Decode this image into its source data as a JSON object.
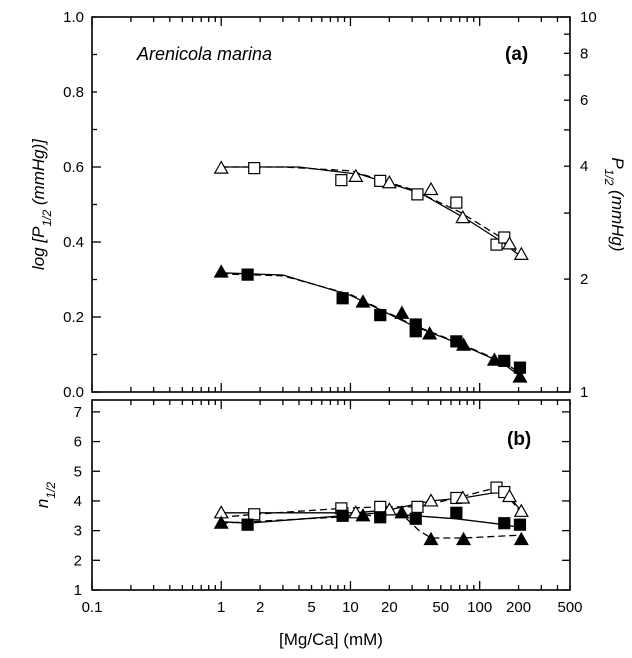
{
  "chart_data": [
    {
      "panel": "a",
      "type": "scatter",
      "panel_label": "(a)",
      "annotation": "Arenicola marina",
      "xlabel": "[Mg/Ca] (mM)",
      "xscale": "log",
      "xlim": [
        0.1,
        500
      ],
      "x_tick_labels": [
        "0.1",
        "1",
        "2",
        "5",
        "10",
        "20",
        "50",
        "100",
        "200",
        "500"
      ],
      "ylabel_left": "log [P1/2 (mmHg)]",
      "ylim": [
        0.0,
        1.0
      ],
      "y_tick_labels": [
        "0.0",
        "0.2",
        "0.4",
        "0.6",
        "0.8",
        "1.0"
      ],
      "ylabel_right": "P1/2 (mmHg)",
      "y_right_scale": "log",
      "y_right_lim": [
        1,
        10
      ],
      "y_right_tick_labels": [
        "1",
        "2",
        "4",
        "6",
        "8",
        "10"
      ],
      "series": [
        {
          "marker": "open-square",
          "line": "dashed",
          "points": [
            [
              1.8,
              0.597
            ],
            [
              8.5,
              0.565
            ],
            [
              17,
              0.563
            ],
            [
              33,
              0.527
            ],
            [
              66,
              0.505
            ],
            [
              135,
              0.393
            ],
            [
              155,
              0.412
            ]
          ],
          "fit": [
            [
              1,
              0.6
            ],
            [
              3,
              0.6
            ],
            [
              10,
              0.59
            ],
            [
              30,
              0.54
            ],
            [
              70,
              0.48
            ],
            [
              150,
              0.41
            ],
            [
              200,
              0.37
            ]
          ]
        },
        {
          "marker": "open-triangle",
          "line": "solid",
          "points": [
            [
              1,
              0.597
            ],
            [
              11,
              0.575
            ],
            [
              20,
              0.558
            ],
            [
              42,
              0.54
            ],
            [
              74,
              0.465
            ],
            [
              170,
              0.395
            ],
            [
              210,
              0.367
            ]
          ],
          "fit": [
            [
              1,
              0.6
            ],
            [
              4,
              0.6
            ],
            [
              12,
              0.58
            ],
            [
              35,
              0.53
            ],
            [
              80,
              0.46
            ],
            [
              150,
              0.4
            ],
            [
              210,
              0.36
            ]
          ]
        },
        {
          "marker": "filled-square",
          "line": "dashed",
          "points": [
            [
              1.6,
              0.313
            ],
            [
              8.7,
              0.25
            ],
            [
              17,
              0.205
            ],
            [
              32,
              0.18
            ],
            [
              32,
              0.162
            ],
            [
              66,
              0.135
            ],
            [
              155,
              0.083
            ],
            [
              205,
              0.065
            ]
          ],
          "fit": [
            [
              1,
              0.315
            ],
            [
              3,
              0.31
            ],
            [
              10,
              0.26
            ],
            [
              30,
              0.18
            ],
            [
              70,
              0.13
            ],
            [
              150,
              0.08
            ],
            [
              210,
              0.05
            ]
          ]
        },
        {
          "marker": "filled-triangle",
          "line": "solid",
          "points": [
            [
              1,
              0.32
            ],
            [
              12.5,
              0.24
            ],
            [
              25,
              0.21
            ],
            [
              41,
              0.155
            ],
            [
              75,
              0.125
            ],
            [
              130,
              0.085
            ],
            [
              205,
              0.04
            ]
          ],
          "fit": [
            [
              1,
              0.318
            ],
            [
              3,
              0.312
            ],
            [
              10,
              0.258
            ],
            [
              30,
              0.178
            ],
            [
              70,
              0.128
            ],
            [
              150,
              0.078
            ],
            [
              210,
              0.04
            ]
          ]
        }
      ]
    },
    {
      "panel": "b",
      "type": "line",
      "panel_label": "(b)",
      "xlabel": "[Mg/Ca] (mM)",
      "xscale": "log",
      "xlim": [
        0.1,
        500
      ],
      "ylabel": "n1/2",
      "ylim": [
        1,
        7.4
      ],
      "y_tick_labels": [
        "1",
        "2",
        "3",
        "4",
        "5",
        "6",
        "7"
      ],
      "series": [
        {
          "marker": "open-square",
          "line": "dashed",
          "points": [
            [
              1.8,
              3.55
            ],
            [
              8.5,
              3.75
            ],
            [
              17,
              3.8
            ],
            [
              33,
              3.8
            ],
            [
              66,
              4.1
            ],
            [
              135,
              4.45
            ],
            [
              155,
              4.3
            ]
          ],
          "fit": [
            [
              1,
              3.45
            ],
            [
              1.8,
              3.55
            ],
            [
              8.5,
              3.75
            ],
            [
              17,
              3.8
            ],
            [
              33,
              3.8
            ],
            [
              66,
              4.1
            ],
            [
              135,
              4.45
            ],
            [
              155,
              4.3
            ],
            [
              210,
              3.6
            ]
          ]
        },
        {
          "marker": "open-triangle",
          "line": "solid",
          "points": [
            [
              1,
              3.6
            ],
            [
              11,
              3.6
            ],
            [
              20,
              3.7
            ],
            [
              42,
              4.0
            ],
            [
              74,
              4.1
            ],
            [
              170,
              4.15
            ],
            [
              210,
              3.65
            ]
          ],
          "fit": [
            [
              1,
              3.6
            ],
            [
              11,
              3.6
            ],
            [
              20,
              3.7
            ],
            [
              42,
              4.0
            ],
            [
              74,
              4.1
            ],
            [
              140,
              4.3
            ],
            [
              170,
              4.15
            ],
            [
              210,
              3.65
            ]
          ]
        },
        {
          "marker": "filled-square",
          "line": "solid",
          "points": [
            [
              1.6,
              3.2
            ],
            [
              8.7,
              3.5
            ],
            [
              17,
              3.45
            ],
            [
              32,
              3.4
            ],
            [
              66,
              3.6
            ],
            [
              155,
              3.25
            ],
            [
              205,
              3.2
            ]
          ],
          "fit": [
            [
              1,
              3.3
            ],
            [
              1.6,
              3.25
            ],
            [
              8.7,
              3.5
            ],
            [
              17,
              3.6
            ],
            [
              32,
              3.5
            ],
            [
              66,
              3.4
            ],
            [
              155,
              3.2
            ],
            [
              210,
              3.1
            ]
          ]
        },
        {
          "marker": "filled-triangle",
          "line": "dashed",
          "points": [
            [
              1,
              3.25
            ],
            [
              12.5,
              3.5
            ],
            [
              25,
              3.6
            ],
            [
              42,
              2.7
            ],
            [
              75,
              2.7
            ],
            [
              210,
              2.7
            ]
          ],
          "fit": [
            [
              1,
              3.25
            ],
            [
              12.5,
              3.5
            ],
            [
              25,
              3.55
            ],
            [
              34,
              3.0
            ],
            [
              42,
              2.75
            ],
            [
              75,
              2.75
            ],
            [
              210,
              2.85
            ]
          ]
        }
      ]
    }
  ]
}
